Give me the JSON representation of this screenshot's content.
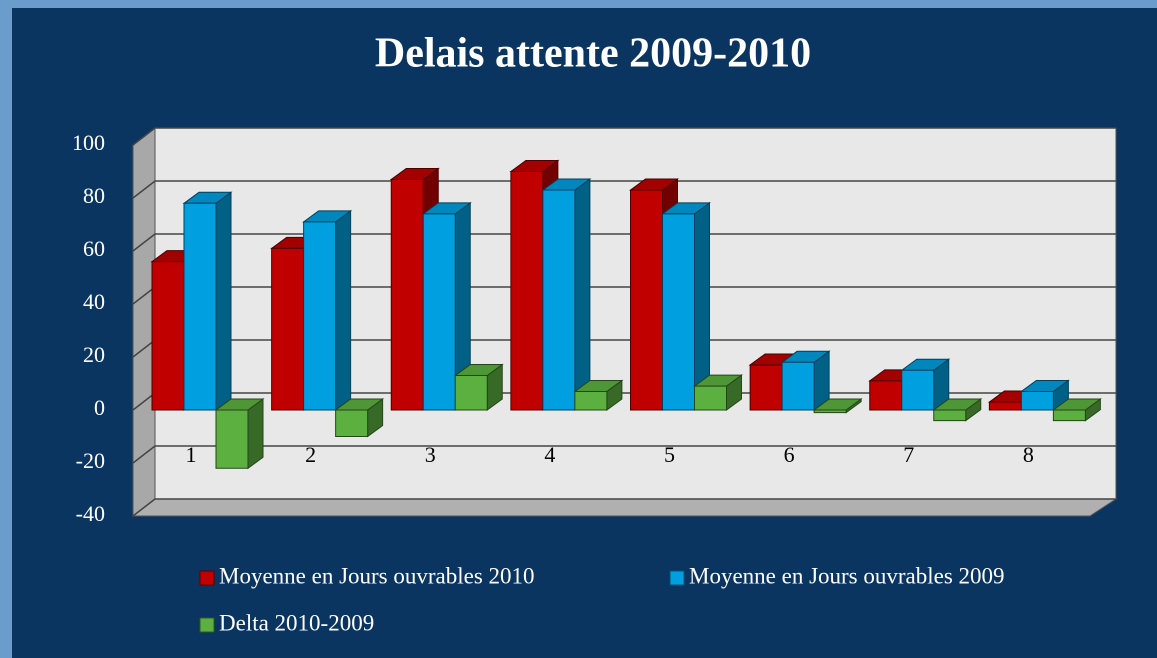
{
  "chart_data": {
    "type": "bar3d",
    "title": "Delais attente 2009-2010",
    "categories": [
      "1",
      "2",
      "3",
      "4",
      "5",
      "6",
      "7",
      "8"
    ],
    "series": [
      {
        "name": "Moyenne en Jours ouvrables 2010",
        "color": "#c00000",
        "values": [
          56,
          61,
          87,
          90,
          83,
          17,
          11,
          3
        ]
      },
      {
        "name": "Moyenne en Jours ouvrables 2009",
        "color": "#00a0e0",
        "values": [
          78,
          71,
          74,
          83,
          74,
          18,
          15,
          7
        ]
      },
      {
        "name": "Delta 2010-2009",
        "color": "#5cb040",
        "values": [
          -22,
          -10,
          13,
          7,
          9,
          -1,
          -4,
          -4
        ]
      }
    ],
    "ylim": [
      -40,
      100
    ],
    "yticks": [
      -40,
      -20,
      0,
      20,
      40,
      60,
      80,
      100
    ],
    "grid": true,
    "legend": "bottom"
  }
}
